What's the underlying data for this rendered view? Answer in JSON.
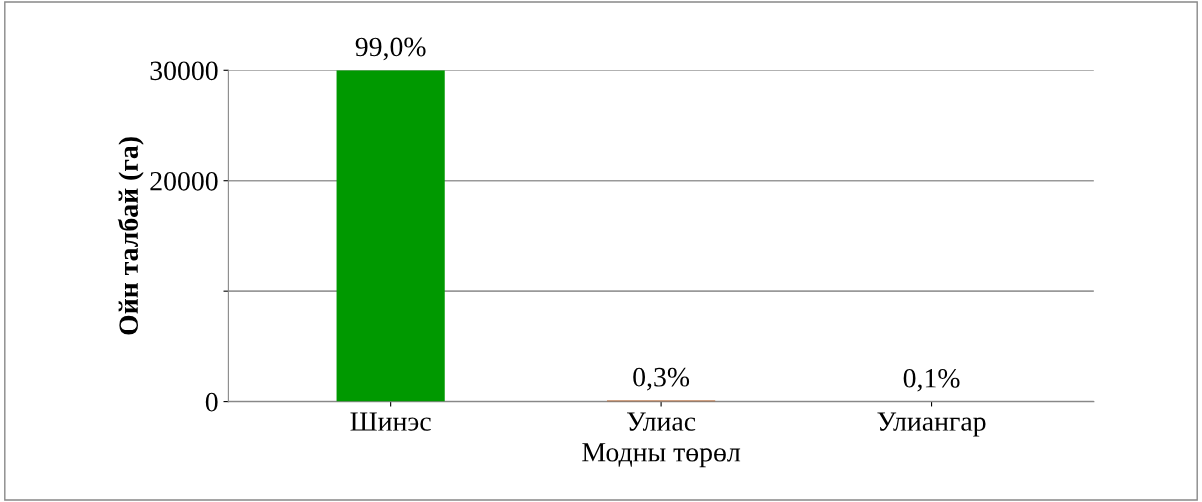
{
  "chart_data": {
    "type": "bar",
    "xlabel": "Модны төрөл",
    "ylabel": "Ойн талбай (га)",
    "categories": [
      "Шинэс",
      "Улиас",
      "Улиангар"
    ],
    "values": [
      30000,
      100,
      0
    ],
    "colors": [
      "#009900",
      "#b85c20",
      "#5b2a86"
    ],
    "annotations": [
      {
        "text": "99,0%",
        "x": "Шинэс",
        "y": 30000
      },
      {
        "text": "0,3%",
        "x": "Улиас",
        "y": 100
      },
      {
        "text": "0,1%",
        "x": "Улиангар",
        "y": 0
      }
    ],
    "ylim": [
      0,
      30000
    ],
    "yticks": [
      0,
      {
        "value": 10000,
        "label": null
      },
      20000,
      30000
    ],
    "grid": "y"
  }
}
